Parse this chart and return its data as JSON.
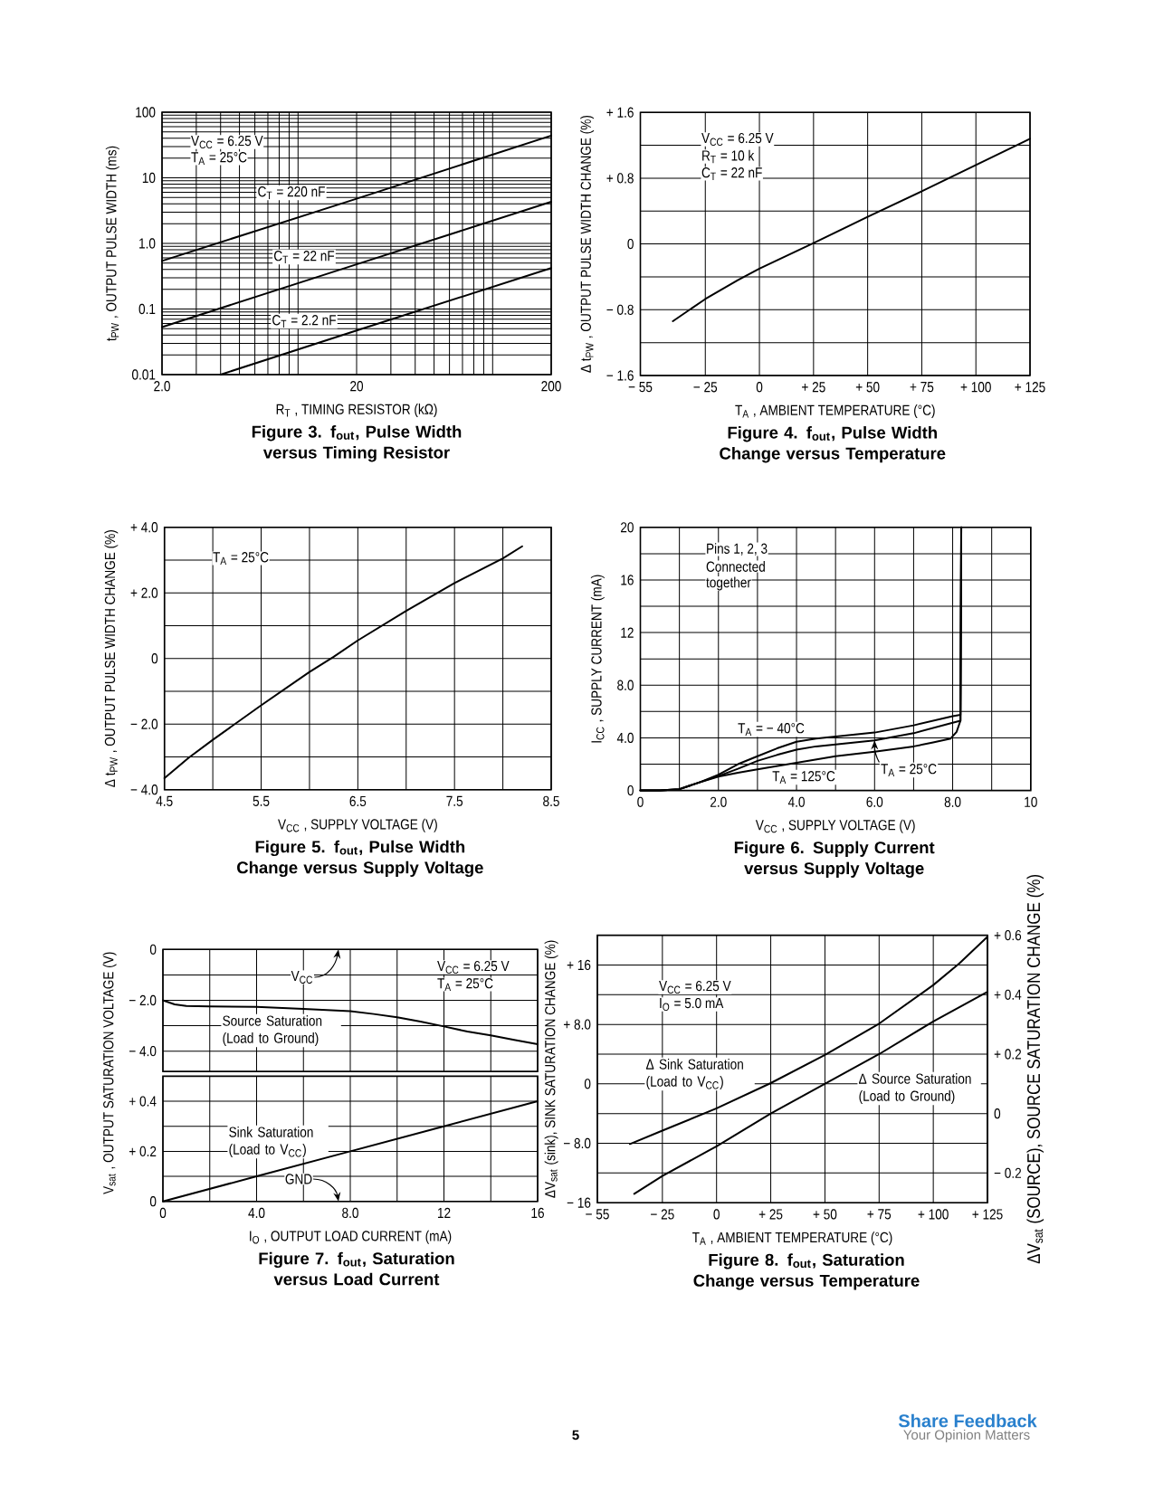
{
  "chart_data": [
    {
      "type": "line",
      "title": "Figure 3. f$_{out}$, Pulse Width versus Timing Resistor",
      "xlabel": "R$_{T}$ , TIMING RESISTOR (kΩ)",
      "ylabel": "t$_{PW}$ ,  OUTPUT PULSE WIDTH (ms)",
      "log": "xy",
      "xlim": [
        2,
        200
      ],
      "xticks": [
        {
          "value": 2,
          "label": "2.0"
        },
        20,
        200
      ],
      "ylim": [
        0.01,
        100
      ],
      "yticks": [
        0.01,
        0.1,
        {
          "value": 1,
          "label": "1.0"
        },
        10,
        100
      ],
      "grid": true,
      "line_style": "solid",
      "annotations": [
        "V$_{CC}$ = 6.25 V",
        "T$_{A}$ = 25°C"
      ],
      "series": [
        {
          "name": "C$_{T}$ = 220 nF",
          "color": "#000000",
          "x": [
            2,
            20,
            200
          ],
          "values": [
            0.54,
            4.8,
            44
          ]
        },
        {
          "name": "C$_{T}$ = 22 nF",
          "color": "#000000",
          "x": [
            2,
            20,
            200
          ],
          "values": [
            0.053,
            0.48,
            4.3
          ]
        },
        {
          "name": "C$_{T}$ = 2.2 nF",
          "color": "#000000",
          "x": [
            4,
            20,
            200
          ],
          "values": [
            0.01,
            0.047,
            0.42
          ]
        }
      ]
    },
    {
      "type": "line",
      "title": "Figure 4. f$_{out}$, Pulse Width Change versus Temperature",
      "xlabel": "T$_{A}$ , AMBIENT TEMPERATURE (°C)",
      "ylabel": "Δ t$_{PW}$ ,  OUTPUT PULSE WIDTH CHANGE (%)",
      "xlim": [
        -55,
        125
      ],
      "xticks": [
        {
          "value": -55,
          "label": "− 55"
        },
        {
          "value": -25,
          "label": "− 25"
        },
        0,
        {
          "value": 25,
          "label": "+ 25"
        },
        {
          "value": 50,
          "label": "+ 50"
        },
        {
          "value": 75,
          "label": "+ 75"
        },
        {
          "value": 100,
          "label": "+ 100"
        },
        {
          "value": 125,
          "label": "+ 125"
        }
      ],
      "ylim": [
        -1.6,
        1.6
      ],
      "yticks": [
        {
          "value": -1.6,
          "label": "− 1.6"
        },
        {
          "value": -1.2,
          "label": null
        },
        {
          "value": -0.8,
          "label": "− 0.8"
        },
        {
          "value": -0.4,
          "label": null
        },
        0,
        {
          "value": 0.4,
          "label": null
        },
        {
          "value": 0.8,
          "label": "+ 0.8"
        },
        {
          "value": 1.2,
          "label": null
        },
        {
          "value": 1.6,
          "label": "+ 1.6"
        }
      ],
      "grid": true,
      "line_style": "solid",
      "annotations": [
        "V$_{CC}$ = 6.25 V",
        "R$_{T}$ = 10 k",
        "C$_{T}$ = 22 nF"
      ],
      "series": [
        {
          "color": "#000000",
          "x": [
            -40,
            -25,
            -10,
            0,
            25,
            50,
            75,
            100,
            125
          ],
          "values": [
            -0.94,
            -0.67,
            -0.44,
            -0.3,
            0.01,
            0.33,
            0.64,
            0.96,
            1.28
          ]
        }
      ]
    },
    {
      "type": "line",
      "title": "Figure 5. f$_{out}$, Pulse Width Change versus Supply Voltage",
      "xlabel": "V$_{CC}$ , SUPPLY VOLTAGE (V)",
      "ylabel": "Δ t$_{PW}$ ,  OUTPUT PULSE WIDTH CHANGE (%)",
      "xlim": [
        4.5,
        8.5
      ],
      "xticks": [
        4.5,
        {
          "value": 5,
          "label": null
        },
        5.5,
        {
          "value": 6,
          "label": null
        },
        6.5,
        {
          "value": 7,
          "label": null
        },
        7.5,
        {
          "value": 8,
          "label": null
        },
        8.5
      ],
      "ylim": [
        -4,
        4
      ],
      "yticks": [
        {
          "value": -4,
          "label": "− 4.0"
        },
        {
          "value": -3,
          "label": null
        },
        {
          "value": -2,
          "label": "− 2.0"
        },
        {
          "value": -1,
          "label": null
        },
        0,
        {
          "value": 1,
          "label": null
        },
        {
          "value": 2,
          "label": "+ 2.0"
        },
        {
          "value": 3,
          "label": null
        },
        {
          "value": 4,
          "label": "+ 4.0"
        }
      ],
      "grid": true,
      "line_style": "solid",
      "annotations": [
        "T$_{A}$ = 25°C"
      ],
      "series": [
        {
          "color": "#000000",
          "x": [
            4.5,
            4.75,
            5,
            5.5,
            6,
            6.25,
            6.5,
            7,
            7.5,
            8,
            8.2
          ],
          "values": [
            -3.65,
            -3.03,
            -2.48,
            -1.43,
            -0.41,
            0.05,
            0.55,
            1.45,
            2.3,
            3.05,
            3.42
          ]
        }
      ]
    },
    {
      "type": "line",
      "title": "Figure 6. Supply Current versus Supply Voltage",
      "xlabel": "V$_{CC}$ , SUPPLY VOLTAGE (V)",
      "ylabel": "I$_{CC}$ ,  SUPPLY CURRENT (mA)",
      "xlim": [
        0,
        10
      ],
      "xticks": [
        0,
        {
          "value": 1,
          "label": null
        },
        {
          "value": 2,
          "label": "2.0"
        },
        {
          "value": 3,
          "label": null
        },
        {
          "value": 4,
          "label": "4.0"
        },
        {
          "value": 5,
          "label": null
        },
        {
          "value": 6,
          "label": "6.0"
        },
        {
          "value": 7,
          "label": null
        },
        {
          "value": 8,
          "label": "8.0"
        },
        {
          "value": 9,
          "label": null
        },
        10
      ],
      "ylim": [
        0,
        20
      ],
      "yticks": [
        0,
        {
          "value": 2,
          "label": null
        },
        {
          "value": 4,
          "label": "4.0"
        },
        {
          "value": 6,
          "label": null
        },
        {
          "value": 8,
          "label": "8.0"
        },
        {
          "value": 10,
          "label": null
        },
        12,
        {
          "value": 14,
          "label": null
        },
        16,
        {
          "value": 18,
          "label": null
        },
        20
      ],
      "grid": true,
      "line_style": "solid",
      "annotations": [
        "Pins 1, 2, 3",
        "Connected",
        "together"
      ],
      "series": [
        {
          "name": "T$_{A}$ = − 40°C",
          "color": "#000000",
          "x": [
            0,
            0.5,
            1,
            1.5,
            2,
            2.5,
            3,
            3.5,
            4,
            4.5,
            5,
            6,
            7,
            8,
            8.2,
            8.22
          ],
          "values": [
            0,
            0,
            0.1,
            0.6,
            1.2,
            2.0,
            2.6,
            3.2,
            3.7,
            3.95,
            4.1,
            4.4,
            4.95,
            5.65,
            5.75,
            20
          ]
        },
        {
          "name": "T$_{A}$ = 25°C",
          "color": "#000000",
          "x": [
            0,
            0.5,
            1,
            1.5,
            2,
            2.5,
            3,
            3.5,
            4,
            4.5,
            5,
            6,
            7,
            8,
            8.2,
            8.22
          ],
          "values": [
            0,
            0,
            0.1,
            0.6,
            1.1,
            1.65,
            2.25,
            2.7,
            3.1,
            3.35,
            3.5,
            3.8,
            4.35,
            5.15,
            5.3,
            20
          ]
        },
        {
          "name": "T$_{A}$ = 125°C",
          "color": "#000000",
          "x": [
            0,
            0.5,
            1,
            1.5,
            2,
            2.5,
            3,
            4,
            5,
            6,
            7,
            7.5,
            7.95,
            8.1,
            8.2,
            8.22
          ],
          "values": [
            0,
            0,
            0.1,
            0.6,
            1.05,
            1.35,
            1.6,
            2.1,
            2.6,
            2.95,
            3.35,
            3.65,
            3.95,
            4.45,
            5.3,
            20
          ]
        }
      ]
    },
    {
      "type": "line",
      "tick_labels": "y",
      "xlim": [
        0,
        16
      ],
      "xticks": [
        0,
        2,
        4,
        6,
        8,
        10,
        12,
        14,
        16
      ],
      "ylim": [
        -4.8,
        0
      ],
      "yticks": [
        {
          "value": -4,
          "label": "− 4.0"
        },
        {
          "value": -3,
          "label": null
        },
        {
          "value": -2,
          "label": "− 2.0"
        },
        {
          "value": -1,
          "label": null
        },
        0
      ],
      "grid": true,
      "line_style": "solid",
      "annotations": [
        "V$_{CC}$ = 6.25 V",
        "T$_{A}$ = 25°C",
        "V$_{CC}$"
      ],
      "series": [
        {
          "name": "Source Saturation (Load to Ground)",
          "color": "#000000",
          "x": [
            0,
            0.5,
            1,
            2,
            4,
            6,
            8,
            9,
            10,
            11,
            12,
            13,
            14,
            15,
            16
          ],
          "values": [
            -2.0,
            -2.16,
            -2.22,
            -2.24,
            -2.26,
            -2.34,
            -2.43,
            -2.54,
            -2.67,
            -2.84,
            -3.03,
            -3.23,
            -3.38,
            -3.56,
            -3.73
          ]
        }
      ]
    },
    {
      "type": "line",
      "title": "Figure 7. f$_{out}$, Saturation versus Load Current",
      "xlabel": "I$_{O}$ , OUTPUT LOAD CURRENT (mA)",
      "ylabel": "V$_{sat}$ ,  OUTPUT SATURATION VOLTAGE (V)",
      "xlim": [
        0,
        16
      ],
      "xticks": [
        0,
        {
          "value": 2,
          "label": null
        },
        {
          "value": 4,
          "label": "4.0"
        },
        {
          "value": 6,
          "label": null
        },
        {
          "value": 8,
          "label": "8.0"
        },
        {
          "value": 10,
          "label": null
        },
        12,
        {
          "value": 14,
          "label": null
        },
        16
      ],
      "ylim": [
        0,
        0.5
      ],
      "yticks": [
        0,
        {
          "value": 0.1,
          "label": null
        },
        {
          "value": 0.2,
          "label": "+ 0.2"
        },
        {
          "value": 0.3,
          "label": null
        },
        {
          "value": 0.4,
          "label": "+ 0.4"
        }
      ],
      "grid": true,
      "line_style": "solid",
      "annotations": [
        "GND"
      ],
      "series": [
        {
          "name": "Sink Saturation (Load to V$_{CC}$)",
          "color": "#000000",
          "x": [
            0,
            4,
            8,
            12,
            16
          ],
          "values": [
            0,
            0.1,
            0.2,
            0.3,
            0.4
          ]
        }
      ]
    },
    {
      "type": "line",
      "title": "Figure 8. f$_{out}$, Saturation Change versus Temperature",
      "xlabel": "T$_{A}$ , AMBIENT TEMPERATURE (°C)",
      "ylabel": "ΔV$_{sat}$ (sink),  SINK SATURATION CHANGE (%)",
      "y2label": "ΔV$_{sat}$ (SOURCE),  SOURCE SATURATION CHANGE (%)",
      "xlim": [
        -55,
        125
      ],
      "xticks": [
        {
          "value": -55,
          "label": "− 55"
        },
        {
          "value": -25,
          "label": "− 25"
        },
        0,
        {
          "value": 25,
          "label": "+ 25"
        },
        {
          "value": 50,
          "label": "+ 50"
        },
        {
          "value": 75,
          "label": "+ 75"
        },
        {
          "value": 100,
          "label": "+ 100"
        },
        {
          "value": 125,
          "label": "+ 125"
        }
      ],
      "ylim": [
        -16,
        20
      ],
      "yticks": [
        {
          "value": -16,
          "label": "− 16"
        },
        {
          "value": -12,
          "label": null
        },
        {
          "value": -8,
          "label": "− 8.0"
        },
        {
          "value": -4,
          "label": null
        },
        0,
        {
          "value": 4,
          "label": null
        },
        {
          "value": 8,
          "label": "+ 8.0"
        },
        {
          "value": 12,
          "label": null
        },
        {
          "value": 16,
          "label": "+ 16"
        }
      ],
      "y2lim": [
        -0.3,
        0.6
      ],
      "y2ticks": [
        {
          "value": -0.2,
          "label": "− 0.2"
        },
        0,
        {
          "value": 0.2,
          "label": "+ 0.2"
        },
        {
          "value": 0.4,
          "label": "+ 0.4"
        },
        {
          "value": 0.6,
          "label": "+ 0.6"
        }
      ],
      "grid": true,
      "line_style": "solid",
      "annotations": [
        "V$_{CC}$ = 6.25 V",
        "I$_{O}$ = 5.0 mA",
        "5",
        "Share Feedback",
        "Your Opinion Matters"
      ],
      "series": [
        {
          "name": "Δ Sink Saturation (Load to V$_{CC}$)",
          "color": "#000000",
          "x": [
            -40,
            -25,
            0,
            25,
            50,
            75,
            100,
            112,
            125
          ],
          "values": [
            -8.1,
            -6.3,
            -3.3,
            0.1,
            3.9,
            8.1,
            13.3,
            16.2,
            19.8
          ]
        },
        {
          "name": "Δ Source Saturation (Load to Ground)",
          "color": "#000000",
          "axis": "y2",
          "x": [
            -38,
            -25,
            0,
            25,
            50,
            75,
            100,
            125
          ],
          "values": [
            -0.27,
            -0.21,
            -0.11,
            0,
            0.1,
            0.2,
            0.31,
            0.41
          ]
        }
      ]
    }
  ]
}
